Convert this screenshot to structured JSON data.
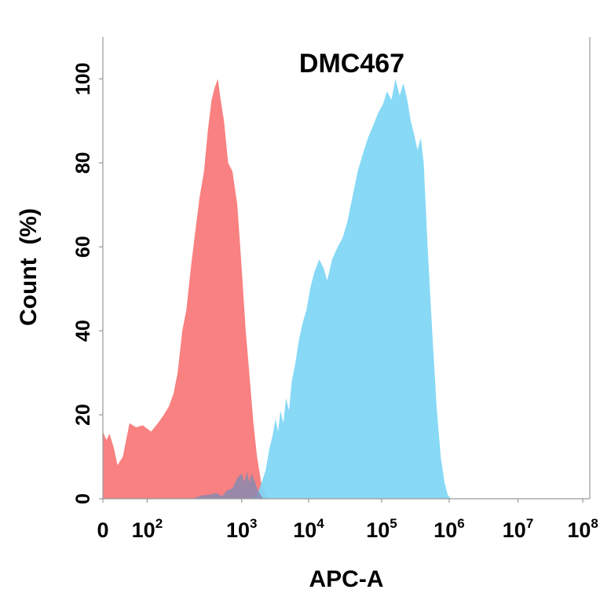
{
  "chart_data": {
    "type": "area",
    "title": "DMC467",
    "xlabel": "APC-A",
    "ylabel": "Count  (%)",
    "xscale": "biexponential",
    "ylim": [
      0,
      110
    ],
    "grid": false,
    "legend": "none",
    "y_ticks": [
      {
        "value": 0,
        "label": "0"
      },
      {
        "value": 20,
        "label": "20"
      },
      {
        "value": 40,
        "label": "40"
      },
      {
        "value": 60,
        "label": "60"
      },
      {
        "value": 80,
        "label": "80"
      },
      {
        "value": 100,
        "label": "100"
      }
    ],
    "x_ticks": [
      {
        "value": 0,
        "label": "0",
        "base": "0",
        "exp": ""
      },
      {
        "value": 100,
        "label": "10^2",
        "base": "10",
        "exp": "2"
      },
      {
        "value": 1000,
        "label": "10^3",
        "base": "10",
        "exp": "3"
      },
      {
        "value": 10000,
        "label": "10^4",
        "base": "10",
        "exp": "4"
      },
      {
        "value": 100000,
        "label": "10^5",
        "base": "10",
        "exp": "5"
      },
      {
        "value": 1000000,
        "label": "10^6",
        "base": "10",
        "exp": "6"
      },
      {
        "value": 10000000,
        "label": "10^7",
        "base": "10",
        "exp": "7"
      },
      {
        "value": 100000000,
        "label": "10^8",
        "base": "10",
        "exp": "8"
      }
    ],
    "series": [
      {
        "color": "#f87676",
        "points": [
          [
            0,
            16
          ],
          [
            8,
            14
          ],
          [
            15,
            15.5
          ],
          [
            25,
            12
          ],
          [
            33,
            8
          ],
          [
            45,
            10
          ],
          [
            60,
            18
          ],
          [
            75,
            17
          ],
          [
            90,
            17.5
          ],
          [
            110,
            16
          ],
          [
            130,
            18
          ],
          [
            150,
            20
          ],
          [
            170,
            22
          ],
          [
            190,
            25
          ],
          [
            210,
            30
          ],
          [
            235,
            40
          ],
          [
            260,
            45
          ],
          [
            290,
            55
          ],
          [
            320,
            63
          ],
          [
            360,
            72
          ],
          [
            400,
            78
          ],
          [
            440,
            88
          ],
          [
            480,
            95
          ],
          [
            520,
            98
          ],
          [
            560,
            100
          ],
          [
            600,
            95
          ],
          [
            650,
            90
          ],
          [
            720,
            80
          ],
          [
            800,
            78
          ],
          [
            900,
            70
          ],
          [
            1000,
            55
          ],
          [
            1150,
            40
          ],
          [
            1300,
            30
          ],
          [
            1500,
            18
          ],
          [
            1700,
            10
          ],
          [
            2000,
            3
          ],
          [
            2300,
            0.5
          ],
          [
            2600,
            0
          ]
        ]
      },
      {
        "color": "#7dd6f5",
        "points": [
          [
            1400,
            0
          ],
          [
            1700,
            1
          ],
          [
            2000,
            4
          ],
          [
            2300,
            7
          ],
          [
            2600,
            12
          ],
          [
            2900,
            15
          ],
          [
            3200,
            19
          ],
          [
            3500,
            16
          ],
          [
            3800,
            21
          ],
          [
            4200,
            18
          ],
          [
            4600,
            24
          ],
          [
            5100,
            21
          ],
          [
            5600,
            28
          ],
          [
            6300,
            32
          ],
          [
            7200,
            38
          ],
          [
            8200,
            42
          ],
          [
            9300,
            45
          ],
          [
            10500,
            50
          ],
          [
            12000,
            54
          ],
          [
            14000,
            57
          ],
          [
            16000,
            55
          ],
          [
            18000,
            52
          ],
          [
            21000,
            57
          ],
          [
            25000,
            60
          ],
          [
            29000,
            62
          ],
          [
            34000,
            66
          ],
          [
            40000,
            72
          ],
          [
            47000,
            78
          ],
          [
            55000,
            82
          ],
          [
            65000,
            86
          ],
          [
            77000,
            89
          ],
          [
            90000,
            92
          ],
          [
            105000,
            94
          ],
          [
            120000,
            97
          ],
          [
            140000,
            95
          ],
          [
            160000,
            100
          ],
          [
            185000,
            96
          ],
          [
            210000,
            99
          ],
          [
            240000,
            95
          ],
          [
            270000,
            90
          ],
          [
            300000,
            87
          ],
          [
            340000,
            83
          ],
          [
            380000,
            86
          ],
          [
            420000,
            80
          ],
          [
            480000,
            60
          ],
          [
            560000,
            40
          ],
          [
            650000,
            22
          ],
          [
            750000,
            10
          ],
          [
            850000,
            4
          ],
          [
            950000,
            1
          ],
          [
            1050000,
            0
          ]
        ]
      },
      {
        "color": "#8a8ab0",
        "points": [
          [
            300,
            0
          ],
          [
            380,
            0.8
          ],
          [
            460,
            1
          ],
          [
            540,
            1.4
          ],
          [
            620,
            0.6
          ],
          [
            700,
            2
          ],
          [
            800,
            2.5
          ],
          [
            900,
            5
          ],
          [
            1000,
            6
          ],
          [
            1100,
            4
          ],
          [
            1200,
            6.5
          ],
          [
            1300,
            4
          ],
          [
            1400,
            6
          ],
          [
            1550,
            4.5
          ],
          [
            1700,
            2.5
          ],
          [
            1900,
            1
          ],
          [
            2100,
            0
          ]
        ]
      }
    ]
  }
}
